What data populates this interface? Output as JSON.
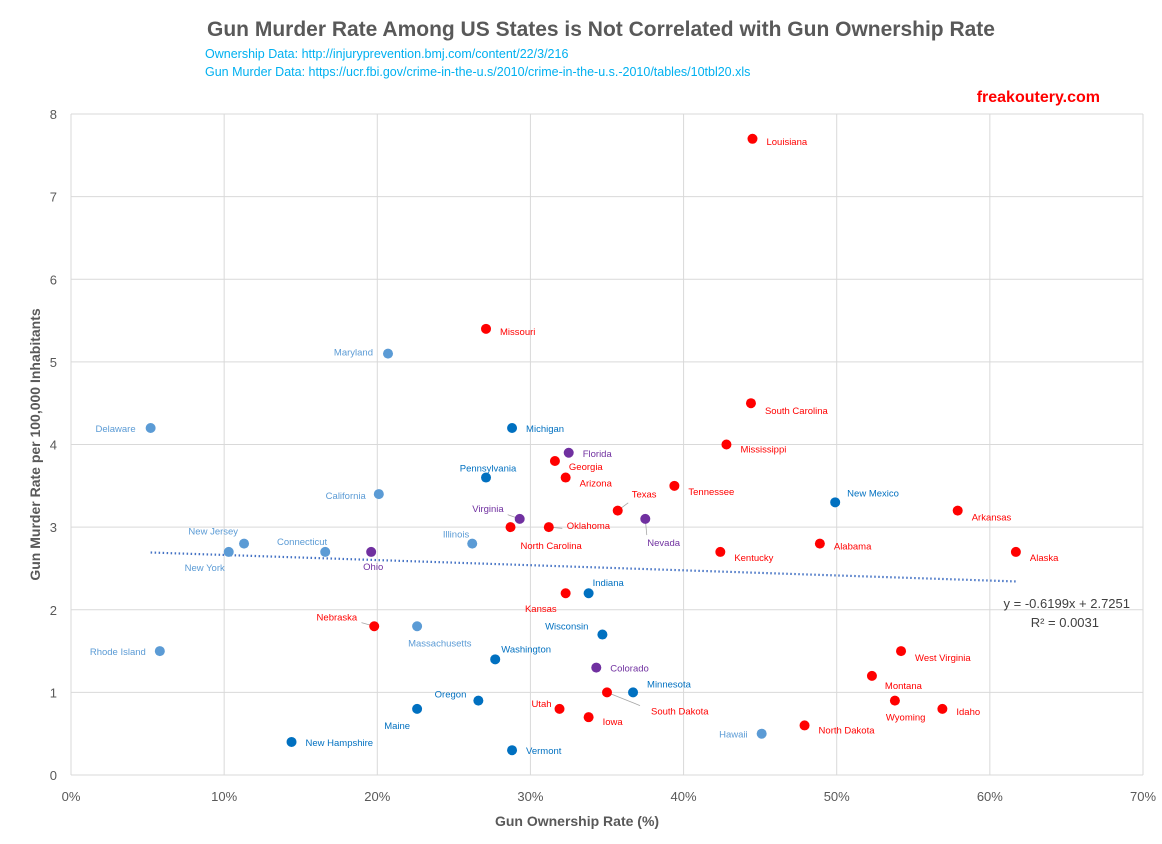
{
  "title": "Gun Murder Rate Among US States is Not Correlated with Gun Ownership Rate",
  "source_ownership": "Ownership Data: http://injuryprevention.bmj.com/content/22/3/216",
  "source_murder": "Gun Murder Data: https://ucr.fbi.gov/crime-in-the-u.s/2010/crime-in-the-u.s.-2010/tables/10tbl20.xls",
  "brand": "freakoutery.com",
  "colors": {
    "red": "#ff0000",
    "blue": "#0070c0",
    "lightblue": "#5b9bd5",
    "purple": "#7030a0",
    "trend": "#4472c4"
  },
  "chart_data": {
    "type": "scatter",
    "title": "Gun Murder Rate Among US States is Not Correlated with Gun Ownership Rate",
    "xlabel": "Gun Ownership Rate (%)",
    "ylabel": "Gun Murder Rate per 100,000 Inhabitants",
    "xlim": [
      0,
      70
    ],
    "ylim": [
      0,
      8
    ],
    "xticks": [
      "0%",
      "10%",
      "20%",
      "30%",
      "40%",
      "50%",
      "60%",
      "70%"
    ],
    "yticks": [
      "0",
      "1",
      "2",
      "3",
      "4",
      "5",
      "6",
      "7",
      "8"
    ],
    "grid": true,
    "trendline": {
      "slope": -0.6199,
      "intercept": 2.7251,
      "x_range": [
        5.2,
        61.7
      ],
      "equation": "y = -0.6199x + 2.7251",
      "r2": "R² = 0.0031"
    },
    "points": [
      {
        "name": "Louisiana",
        "x": 44.5,
        "y": 7.7,
        "color": "red"
      },
      {
        "name": "Missouri",
        "x": 27.1,
        "y": 5.4,
        "color": "red"
      },
      {
        "name": "Maryland",
        "x": 20.7,
        "y": 5.1,
        "color": "lightblue"
      },
      {
        "name": "South Carolina",
        "x": 44.4,
        "y": 4.5,
        "color": "red"
      },
      {
        "name": "Delaware",
        "x": 5.2,
        "y": 4.2,
        "color": "lightblue"
      },
      {
        "name": "Michigan",
        "x": 28.8,
        "y": 4.2,
        "color": "blue"
      },
      {
        "name": "Mississippi",
        "x": 42.8,
        "y": 4.0,
        "color": "red"
      },
      {
        "name": "Florida",
        "x": 32.5,
        "y": 3.9,
        "color": "purple"
      },
      {
        "name": "Georgia",
        "x": 31.6,
        "y": 3.8,
        "color": "red"
      },
      {
        "name": "Pennsylvania",
        "x": 27.1,
        "y": 3.6,
        "color": "blue"
      },
      {
        "name": "Arizona",
        "x": 32.3,
        "y": 3.6,
        "color": "red"
      },
      {
        "name": "Tennessee",
        "x": 39.4,
        "y": 3.5,
        "color": "red"
      },
      {
        "name": "California",
        "x": 20.1,
        "y": 3.4,
        "color": "lightblue"
      },
      {
        "name": "New Mexico",
        "x": 49.9,
        "y": 3.3,
        "color": "blue"
      },
      {
        "name": "Texas",
        "x": 35.7,
        "y": 3.2,
        "color": "red"
      },
      {
        "name": "Arkansas",
        "x": 57.9,
        "y": 3.2,
        "color": "red"
      },
      {
        "name": "Virginia",
        "x": 29.3,
        "y": 3.1,
        "color": "purple"
      },
      {
        "name": "Nevada",
        "x": 37.5,
        "y": 3.1,
        "color": "purple"
      },
      {
        "name": "North Carolina",
        "x": 28.7,
        "y": 3.0,
        "color": "red"
      },
      {
        "name": "Oklahoma",
        "x": 31.2,
        "y": 3.0,
        "color": "red"
      },
      {
        "name": "Illinois",
        "x": 26.2,
        "y": 2.8,
        "color": "lightblue"
      },
      {
        "name": "New Jersey",
        "x": 11.3,
        "y": 2.8,
        "color": "lightblue"
      },
      {
        "name": "Alabama",
        "x": 48.9,
        "y": 2.8,
        "color": "red"
      },
      {
        "name": "New York",
        "x": 10.3,
        "y": 2.7,
        "color": "lightblue"
      },
      {
        "name": "Connecticut",
        "x": 16.6,
        "y": 2.7,
        "color": "lightblue"
      },
      {
        "name": "Ohio",
        "x": 19.6,
        "y": 2.7,
        "color": "purple"
      },
      {
        "name": "Kentucky",
        "x": 42.4,
        "y": 2.7,
        "color": "red"
      },
      {
        "name": "Alaska",
        "x": 61.7,
        "y": 2.7,
        "color": "red"
      },
      {
        "name": "Kansas",
        "x": 32.3,
        "y": 2.2,
        "color": "red"
      },
      {
        "name": "Indiana",
        "x": 33.8,
        "y": 2.2,
        "color": "blue"
      },
      {
        "name": "Nebraska",
        "x": 19.8,
        "y": 1.8,
        "color": "red"
      },
      {
        "name": "Massachusetts",
        "x": 22.6,
        "y": 1.8,
        "color": "lightblue"
      },
      {
        "name": "Wisconsin",
        "x": 34.7,
        "y": 1.7,
        "color": "blue"
      },
      {
        "name": "Rhode Island",
        "x": 5.8,
        "y": 1.5,
        "color": "lightblue"
      },
      {
        "name": "West Virginia",
        "x": 54.2,
        "y": 1.5,
        "color": "red"
      },
      {
        "name": "Washington",
        "x": 27.7,
        "y": 1.4,
        "color": "blue"
      },
      {
        "name": "Colorado",
        "x": 34.3,
        "y": 1.3,
        "color": "purple"
      },
      {
        "name": "Montana",
        "x": 52.3,
        "y": 1.2,
        "color": "red"
      },
      {
        "name": "South Dakota",
        "x": 35.0,
        "y": 1.0,
        "color": "red"
      },
      {
        "name": "Minnesota",
        "x": 36.7,
        "y": 1.0,
        "color": "blue"
      },
      {
        "name": "Oregon",
        "x": 26.6,
        "y": 0.9,
        "color": "blue"
      },
      {
        "name": "Wyoming",
        "x": 53.8,
        "y": 0.9,
        "color": "red"
      },
      {
        "name": "Maine",
        "x": 22.6,
        "y": 0.8,
        "color": "blue"
      },
      {
        "name": "Utah",
        "x": 31.9,
        "y": 0.8,
        "color": "red"
      },
      {
        "name": "Idaho",
        "x": 56.9,
        "y": 0.8,
        "color": "red"
      },
      {
        "name": "Iowa",
        "x": 33.8,
        "y": 0.7,
        "color": "red"
      },
      {
        "name": "North Dakota",
        "x": 47.9,
        "y": 0.6,
        "color": "red"
      },
      {
        "name": "Hawaii",
        "x": 45.1,
        "y": 0.5,
        "color": "lightblue"
      },
      {
        "name": "New Hampshire",
        "x": 14.4,
        "y": 0.4,
        "color": "blue"
      },
      {
        "name": "Vermont",
        "x": 28.8,
        "y": 0.3,
        "color": "blue"
      }
    ]
  }
}
